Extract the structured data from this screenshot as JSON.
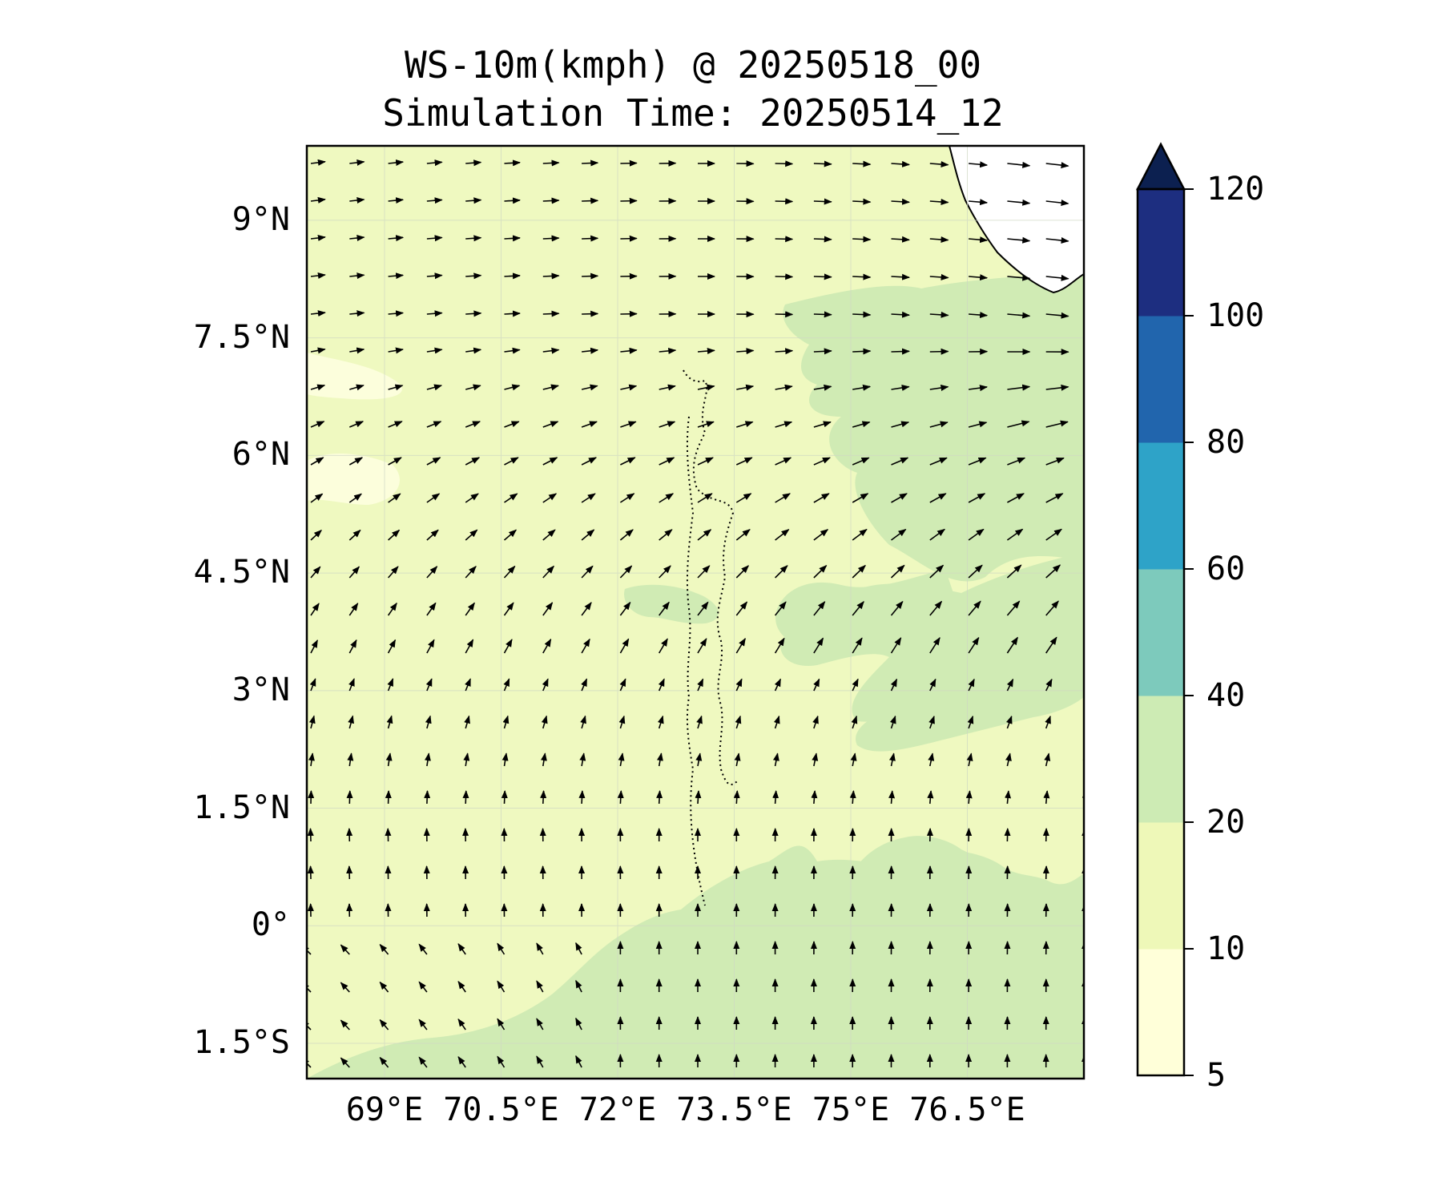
{
  "title_line1": "WS-10m(kmph) @ 20250518_00",
  "title_line2": "Simulation Time: 20250514_12",
  "lat_ticks": [
    "9°N",
    "7.5°N",
    "6°N",
    "4.5°N",
    "3°N",
    "1.5°N",
    "0°",
    "1.5°S"
  ],
  "lat_values": [
    9,
    7.5,
    6,
    4.5,
    3,
    1.5,
    0,
    -1.5
  ],
  "lon_ticks": [
    "69°E",
    "70.5°E",
    "72°E",
    "73.5°E",
    "75°E",
    "76.5°E"
  ],
  "lon_values": [
    69,
    70.5,
    72,
    73.5,
    75,
    76.5
  ],
  "map_extent": {
    "lon_min": 68,
    "lon_max": 78,
    "lat_min": -1.95,
    "lat_max": 9.95
  },
  "colorbar": {
    "tick_labels": [
      "120",
      "100",
      "80",
      "60",
      "40",
      "20",
      "10",
      "5"
    ],
    "levels": [
      5,
      10,
      20,
      40,
      60,
      80,
      100,
      120
    ],
    "colors": [
      "#ffffd9",
      "#eef8b8",
      "#cdebb4",
      "#7dcabc",
      "#2ea3c8",
      "#2165ad",
      "#1d2e80"
    ],
    "extend_color": "#0c2050"
  },
  "colors": {
    "background_field": "#eff9c0",
    "calm_patch": "#fcfedc",
    "moderate_patch": "#d0ebb4",
    "coast_land": "#ffffff",
    "arrow": "#000000"
  }
}
